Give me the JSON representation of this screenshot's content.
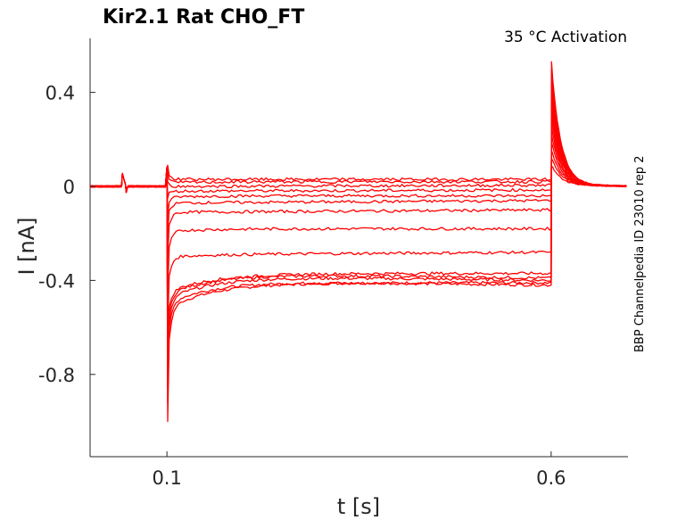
{
  "chart_data": {
    "type": "line",
    "title": "Kir2.1  Rat  CHO_FT",
    "annotation": "35 °C  Activation",
    "side_label": "BBP Channelpedia ID 23010 rep 2",
    "xlabel": "t [s]",
    "ylabel": "I [nA]",
    "xlim": [
      0.0,
      0.7
    ],
    "ylim": [
      -1.15,
      0.63
    ],
    "x_ticks": [
      0.1,
      0.6
    ],
    "x_tick_labels": [
      "0.1",
      "0.6"
    ],
    "y_ticks": [
      0.4,
      0,
      -0.4,
      -0.8
    ],
    "y_tick_labels": [
      "0.4",
      "0",
      "-0.4",
      "-0.8"
    ],
    "grid": false,
    "line_color": "#ff0000",
    "step_start": 0.1,
    "step_end": 0.6,
    "series": [
      {
        "peak": -1.0,
        "early": -0.52,
        "settled": -0.41,
        "end": -0.41
      },
      {
        "peak": -0.92,
        "early": -0.5,
        "settled": -0.4,
        "end": -0.42
      },
      {
        "peak": -0.85,
        "early": -0.48,
        "settled": -0.38,
        "end": -0.4
      },
      {
        "peak": -0.78,
        "early": -0.46,
        "settled": -0.37,
        "end": -0.39
      },
      {
        "peak": -0.7,
        "early": -0.45,
        "settled": -0.37,
        "end": -0.37
      },
      {
        "peak": -0.6,
        "early": -0.3,
        "settled": -0.29,
        "end": -0.28
      },
      {
        "peak": -0.45,
        "early": -0.19,
        "settled": -0.18,
        "end": -0.18
      },
      {
        "peak": -0.3,
        "early": -0.11,
        "settled": -0.11,
        "end": -0.1
      },
      {
        "peak": -0.2,
        "early": -0.07,
        "settled": -0.07,
        "end": -0.06
      },
      {
        "peak": -0.12,
        "early": -0.045,
        "settled": -0.04,
        "end": -0.04
      },
      {
        "peak": -0.05,
        "early": -0.02,
        "settled": -0.02,
        "end": -0.015
      },
      {
        "peak": 0.02,
        "early": 0.0,
        "settled": 0.0,
        "end": 0.005
      },
      {
        "peak": 0.06,
        "early": 0.015,
        "settled": 0.02,
        "end": 0.02
      },
      {
        "peak": 0.09,
        "early": 0.03,
        "settled": 0.03,
        "end": 0.03
      }
    ],
    "tail_peak_max": 0.48
  }
}
